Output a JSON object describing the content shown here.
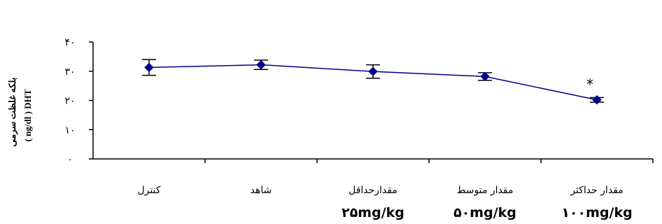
{
  "colors": {
    "series": "#00008b",
    "axis": "#000000"
  },
  "chart_data": {
    "type": "line",
    "ylabel_lines": [
      " بلکه غلظت سرمی",
      "( ng/dl ) DHT"
    ],
    "y_ticks": [
      "۰",
      "۱۰",
      "۲۰",
      "۳۰",
      "۴۰"
    ],
    "y_tick_values": [
      0,
      10,
      20,
      30,
      40
    ],
    "ylim": [
      0,
      40
    ],
    "categories": [
      "کنترل",
      "شاهد",
      "مقدارحداقل",
      "مقدار متوسط",
      "مقدار حداکثر"
    ],
    "dose_labels": [
      "",
      "",
      "۲۵mg/kg",
      "۵۰mg/kg",
      "۱۰۰mg/kg"
    ],
    "series": [
      {
        "values": [
          31.3,
          32.2,
          29.9,
          28.2,
          20.2
        ],
        "errors": [
          2.7,
          1.6,
          2.3,
          1.3,
          0.8
        ],
        "marker": "diamond"
      }
    ],
    "annotations": [
      {
        "category_index": 4,
        "text": "*"
      }
    ],
    "grid": false,
    "legend": "none"
  }
}
